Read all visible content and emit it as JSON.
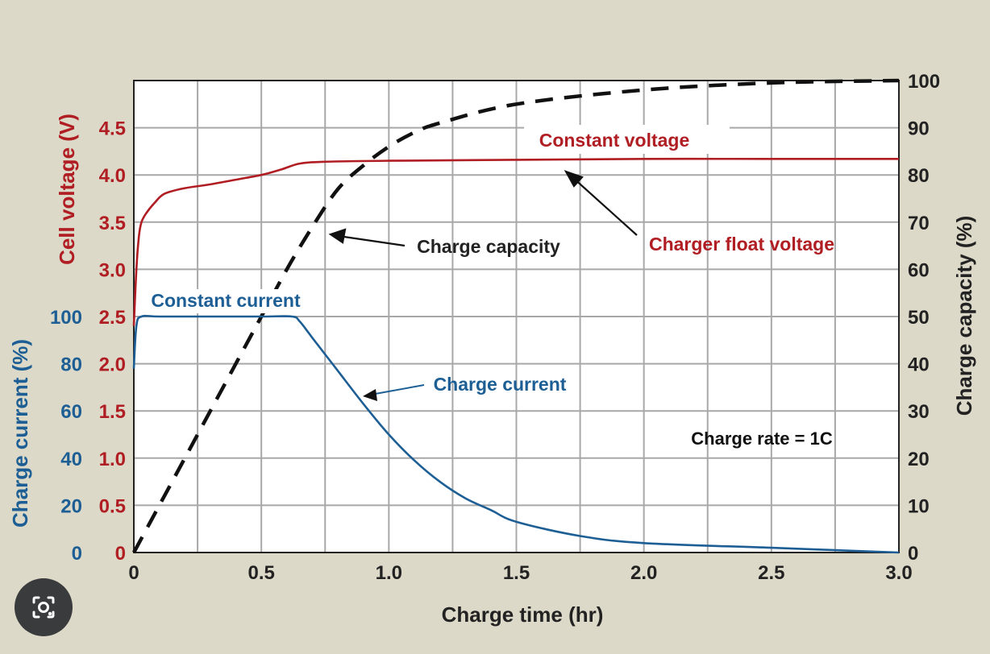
{
  "colors": {
    "voltage": "#b01e23",
    "current": "#1d5f95",
    "capacity": "#111111",
    "grid": "#a8a8a8",
    "background": "#dcd9c8",
    "plot_background": "#ffffff"
  },
  "lens_button": {
    "icon": "google-lens-icon"
  },
  "chart_data": {
    "type": "line",
    "xlabel": "Charge time (hr)",
    "xlim": [
      0,
      3.0
    ],
    "x_ticks": [
      "0",
      "0.5",
      "1.0",
      "1.5",
      "2.0",
      "2.5",
      "3.0"
    ],
    "ylabel_voltage": "Cell voltage (V)",
    "ylabel_current": "Charge current (%)",
    "ylabel_capacity": "Charge capacity (%)",
    "voltage_ticks": [
      "4.5",
      "4.0",
      "3.5",
      "3.0",
      "2.5",
      "2.0",
      "1.5",
      "1.0",
      "0.5",
      "0"
    ],
    "current_ticks": [
      "100",
      "80",
      "60",
      "40",
      "20",
      "0"
    ],
    "capacity_ticks": [
      "100",
      "90",
      "80",
      "70",
      "60",
      "50",
      "40",
      "30",
      "20",
      "10",
      "0"
    ],
    "voltage_lim": [
      0,
      5.0
    ],
    "capacity_lim": [
      0,
      100
    ],
    "grid": true,
    "series": [
      {
        "name": "Charger float voltage",
        "axis": "voltage",
        "x": [
          0,
          0.01,
          0.02,
          0.03,
          0.05,
          0.08,
          0.12,
          0.2,
          0.3,
          0.4,
          0.5,
          0.58,
          0.65,
          0.75,
          1.0,
          1.5,
          2.0,
          2.5,
          3.0
        ],
        "y": [
          2.4,
          3.0,
          3.35,
          3.5,
          3.6,
          3.7,
          3.8,
          3.86,
          3.9,
          3.95,
          4.0,
          4.06,
          4.12,
          4.14,
          4.15,
          4.16,
          4.17,
          4.17,
          4.17
        ]
      },
      {
        "name": "Charge current",
        "axis": "current",
        "x": [
          0,
          0.01,
          0.03,
          0.1,
          0.3,
          0.5,
          0.62,
          0.65,
          0.7,
          0.8,
          0.9,
          1.0,
          1.1,
          1.2,
          1.3,
          1.4,
          1.5,
          1.75,
          2.0,
          2.5,
          3.0
        ],
        "y": [
          78,
          96,
          100,
          100,
          100,
          100,
          100,
          98,
          91,
          77,
          63,
          50,
          39,
          30,
          23,
          18,
          13,
          7,
          4,
          2,
          0
        ]
      },
      {
        "name": "Charge capacity",
        "axis": "capacity",
        "x": [
          0,
          0.2,
          0.4,
          0.5,
          0.6,
          0.7,
          0.8,
          0.9,
          1.0,
          1.1,
          1.2,
          1.5,
          2.0,
          2.5,
          3.0
        ],
        "y": [
          0,
          20,
          40,
          50,
          60,
          69,
          77,
          82,
          86,
          89,
          91,
          95,
          98,
          99.5,
          100
        ]
      }
    ],
    "annotations": [
      {
        "id": "constant_voltage",
        "text": "Constant voltage"
      },
      {
        "id": "charger_float_voltage",
        "text": "Charger float voltage"
      },
      {
        "id": "charge_capacity",
        "text": "Charge capacity"
      },
      {
        "id": "constant_current",
        "text": "Constant current"
      },
      {
        "id": "charge_current",
        "text": "Charge current"
      },
      {
        "id": "charge_rate",
        "text": "Charge rate = 1C"
      }
    ]
  }
}
